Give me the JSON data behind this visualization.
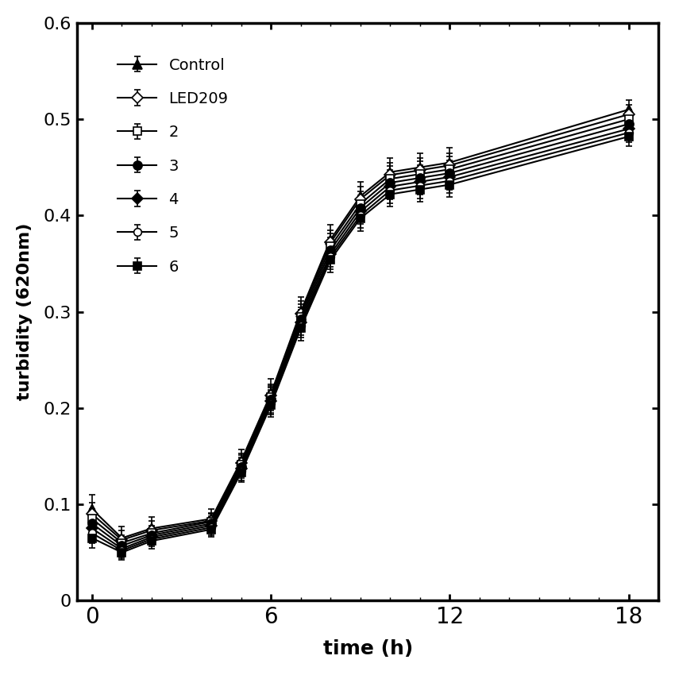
{
  "x": [
    0,
    1,
    2,
    4,
    5,
    6,
    7,
    8,
    9,
    10,
    11,
    12,
    18
  ],
  "series": {
    "Control": {
      "y": [
        0.095,
        0.065,
        0.075,
        0.085,
        0.145,
        0.215,
        0.3,
        0.375,
        0.42,
        0.445,
        0.45,
        0.455,
        0.51
      ],
      "yerr": [
        0.015,
        0.012,
        0.012,
        0.01,
        0.012,
        0.015,
        0.015,
        0.015,
        0.015,
        0.015,
        0.015,
        0.015,
        0.01
      ],
      "marker": "^",
      "marker_size": 8,
      "marker_facecolor": "black",
      "linestyle": "-",
      "color": "black"
    },
    "LED209": {
      "y": [
        0.09,
        0.063,
        0.073,
        0.083,
        0.143,
        0.213,
        0.298,
        0.372,
        0.417,
        0.442,
        0.447,
        0.452,
        0.505
      ],
      "yerr": [
        0.012,
        0.01,
        0.01,
        0.008,
        0.01,
        0.012,
        0.013,
        0.013,
        0.013,
        0.013,
        0.013,
        0.013,
        0.01
      ],
      "marker": "D",
      "marker_size": 7,
      "marker_facecolor": "white",
      "linestyle": "-",
      "color": "black"
    },
    "2": {
      "y": [
        0.085,
        0.06,
        0.07,
        0.082,
        0.141,
        0.211,
        0.295,
        0.368,
        0.412,
        0.438,
        0.443,
        0.448,
        0.5
      ],
      "yerr": [
        0.01,
        0.008,
        0.008,
        0.008,
        0.01,
        0.012,
        0.013,
        0.013,
        0.013,
        0.013,
        0.013,
        0.013,
        0.01
      ],
      "marker": "s",
      "marker_size": 7,
      "marker_facecolor": "white",
      "linestyle": "-",
      "color": "black"
    },
    "3": {
      "y": [
        0.08,
        0.057,
        0.068,
        0.08,
        0.139,
        0.209,
        0.292,
        0.364,
        0.408,
        0.434,
        0.439,
        0.444,
        0.495
      ],
      "yerr": [
        0.01,
        0.008,
        0.008,
        0.008,
        0.01,
        0.012,
        0.013,
        0.013,
        0.013,
        0.013,
        0.013,
        0.013,
        0.01
      ],
      "marker": "o",
      "marker_size": 8,
      "marker_facecolor": "black",
      "linestyle": "-",
      "color": "black"
    },
    "4": {
      "y": [
        0.075,
        0.054,
        0.066,
        0.078,
        0.137,
        0.207,
        0.289,
        0.36,
        0.404,
        0.43,
        0.435,
        0.44,
        0.49
      ],
      "yerr": [
        0.01,
        0.008,
        0.008,
        0.008,
        0.01,
        0.012,
        0.013,
        0.013,
        0.013,
        0.013,
        0.013,
        0.013,
        0.01
      ],
      "marker": "D",
      "marker_size": 7,
      "marker_facecolor": "black",
      "linestyle": "-",
      "color": "black"
    },
    "5": {
      "y": [
        0.07,
        0.052,
        0.064,
        0.076,
        0.135,
        0.205,
        0.286,
        0.357,
        0.4,
        0.426,
        0.431,
        0.436,
        0.486
      ],
      "yerr": [
        0.01,
        0.008,
        0.008,
        0.008,
        0.01,
        0.012,
        0.013,
        0.013,
        0.013,
        0.013,
        0.013,
        0.013,
        0.01
      ],
      "marker": "o",
      "marker_size": 7,
      "marker_facecolor": "white",
      "linestyle": "-",
      "color": "black"
    },
    "6": {
      "y": [
        0.065,
        0.05,
        0.062,
        0.074,
        0.133,
        0.203,
        0.283,
        0.354,
        0.397,
        0.422,
        0.427,
        0.432,
        0.482
      ],
      "yerr": [
        0.01,
        0.008,
        0.008,
        0.008,
        0.01,
        0.012,
        0.013,
        0.013,
        0.013,
        0.013,
        0.013,
        0.013,
        0.01
      ],
      "marker": "s",
      "marker_size": 7,
      "marker_facecolor": "black",
      "linestyle": "-",
      "color": "black"
    }
  },
  "xlabel": "time (h)",
  "ylabel": "turbidity (620nm)",
  "xlim": [
    -0.5,
    19
  ],
  "ylim": [
    0,
    0.6
  ],
  "xticks": [
    0,
    6,
    12,
    18
  ],
  "yticks": [
    0,
    0.1,
    0.2,
    0.3,
    0.4,
    0.5,
    0.6
  ],
  "legend_order": [
    "Control",
    "LED209",
    "2",
    "3",
    "4",
    "5",
    "6"
  ],
  "background_color": "#ffffff",
  "axis_color": "#000000",
  "figure_width": 8.5,
  "figure_height": 8.5
}
